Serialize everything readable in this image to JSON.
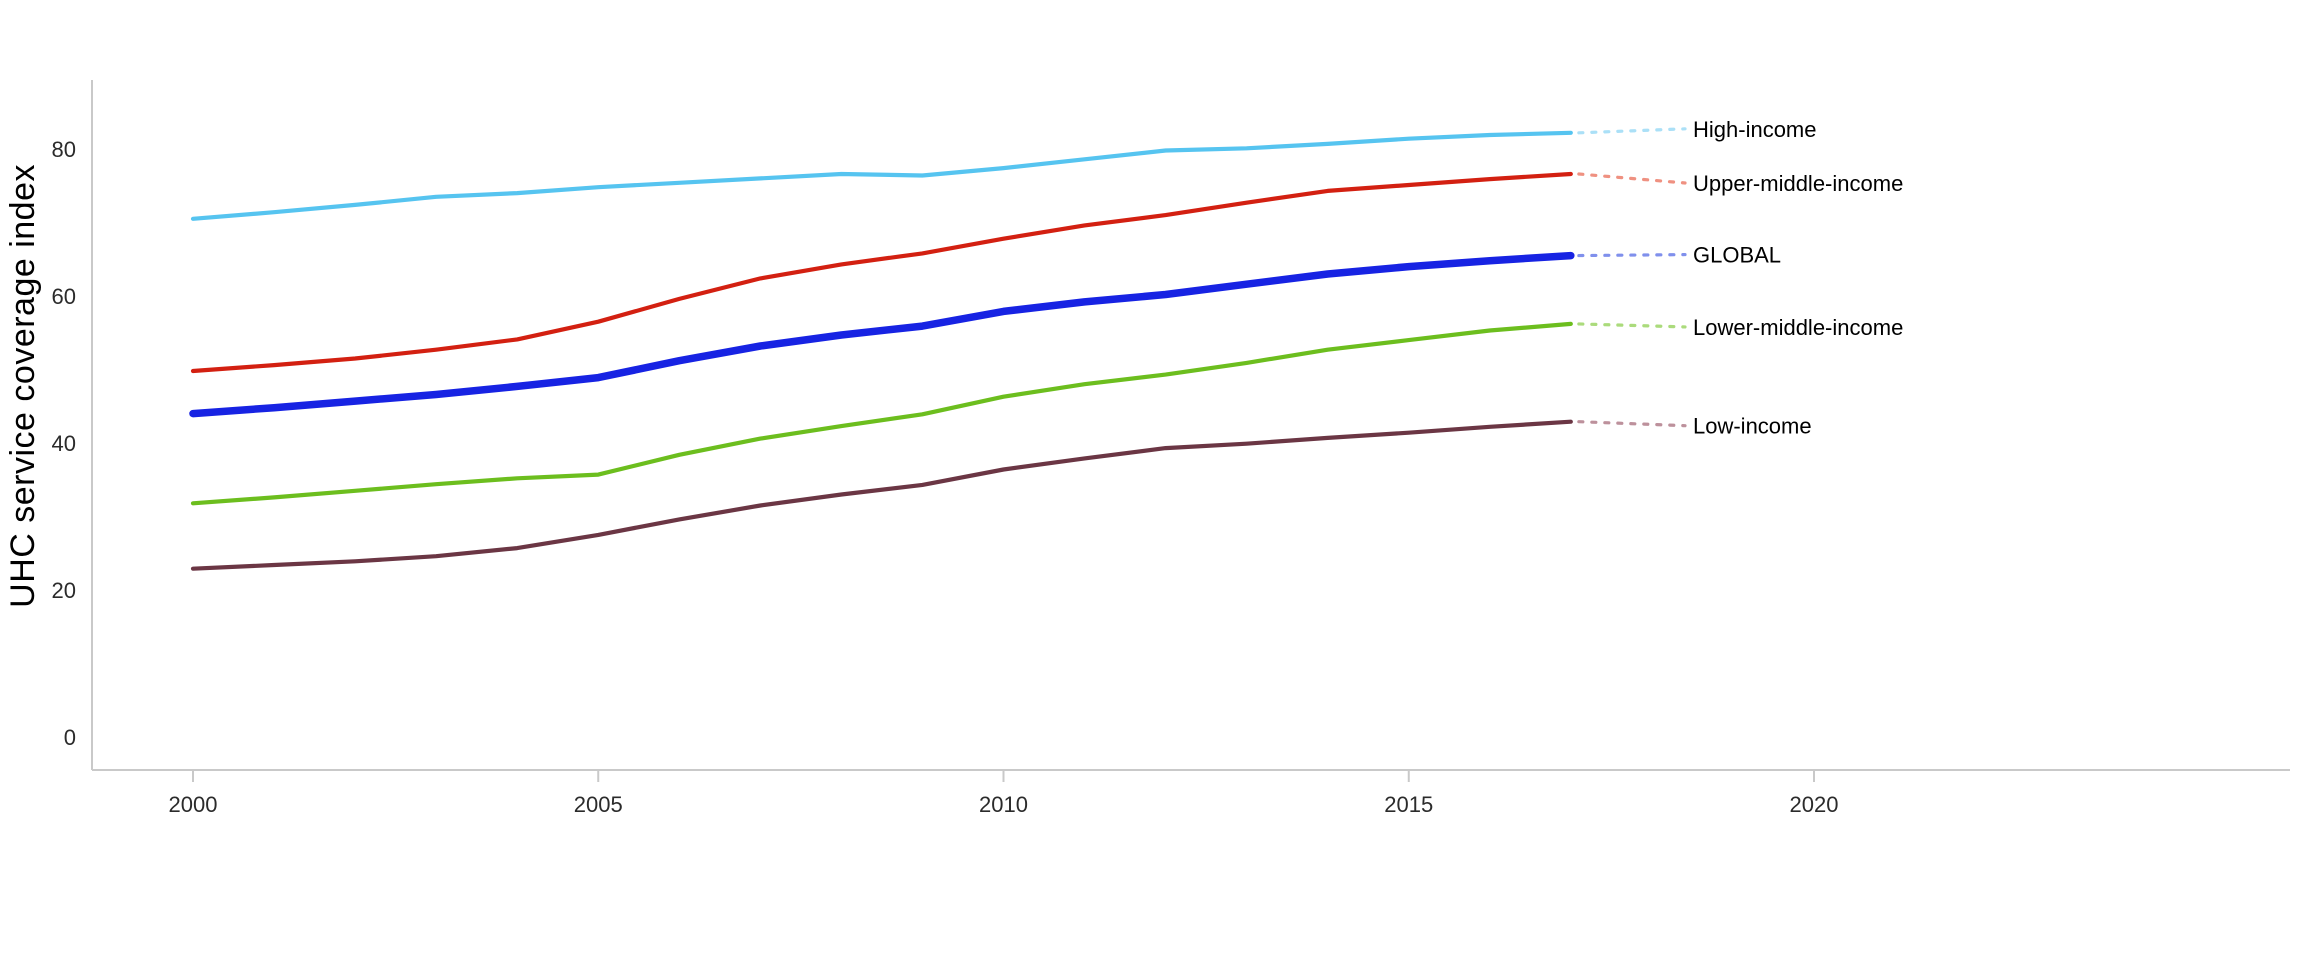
{
  "chart_data": {
    "type": "line",
    "title": "",
    "ylabel": "UHC service coverage index",
    "xlabel": "",
    "x_start_year": 2000,
    "x_end_year": 2017,
    "xticks": [
      "2000",
      "2005",
      "2010",
      "2015",
      "2020"
    ],
    "xtick_years": [
      2000,
      2005,
      2010,
      2015,
      2020
    ],
    "yticks": [
      "0",
      "20",
      "40",
      "60",
      "80"
    ],
    "ytick_values": [
      0,
      20,
      40,
      60,
      80
    ],
    "ylim": [
      0,
      89
    ],
    "grid": false,
    "legend_position": "right-of-line-ends",
    "axis_color": "#c9c9c9",
    "tick_label_color": "#2b2b2b",
    "series_label_color": "#000000",
    "series": [
      {
        "name": "High-income",
        "color": "#56C4F0",
        "leader_color": "#ABE0F7",
        "thick": false,
        "values": [
          70.5,
          71.4,
          72.4,
          73.5,
          74.0,
          74.8,
          75.4,
          76.0,
          76.6,
          76.4,
          77.4,
          78.6,
          79.8,
          80.1,
          80.7,
          81.4,
          81.9,
          82.2
        ]
      },
      {
        "name": "Upper-middle-income",
        "color": "#D32011",
        "leader_color": "#EF9181",
        "thick": false,
        "values": [
          49.8,
          50.6,
          51.5,
          52.7,
          54.1,
          56.5,
          59.6,
          62.4,
          64.3,
          65.8,
          67.8,
          69.6,
          71.0,
          72.7,
          74.3,
          75.1,
          75.9,
          76.6
        ]
      },
      {
        "name": "GLOBAL",
        "color": "#1723E3",
        "leader_color": "#8090EC",
        "thick": true,
        "values": [
          44.0,
          44.8,
          45.7,
          46.6,
          47.7,
          48.9,
          51.2,
          53.2,
          54.7,
          55.9,
          57.9,
          59.2,
          60.2,
          61.6,
          63.0,
          64.0,
          64.8,
          65.5
        ]
      },
      {
        "name": "Lower-middle-income",
        "color": "#6CBE1E",
        "leader_color": "#ABDB7C",
        "thick": false,
        "values": [
          31.8,
          32.6,
          33.5,
          34.4,
          35.2,
          35.7,
          38.4,
          40.6,
          42.3,
          43.9,
          46.3,
          48.0,
          49.3,
          50.9,
          52.7,
          54.0,
          55.3,
          56.2
        ]
      },
      {
        "name": "Low-income",
        "color": "#6B3644",
        "leader_color": "#BD919C",
        "thick": false,
        "values": [
          22.9,
          23.4,
          23.9,
          24.6,
          25.7,
          27.5,
          29.6,
          31.5,
          33.0,
          34.3,
          36.4,
          37.9,
          39.3,
          39.9,
          40.7,
          41.4,
          42.2,
          42.9
        ]
      }
    ]
  }
}
